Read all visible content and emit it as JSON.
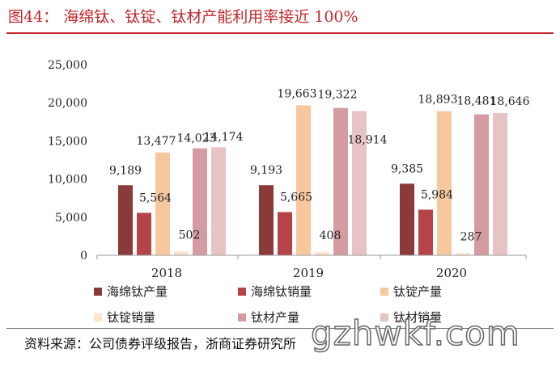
{
  "title": "图44：  海绵钛、钛锭、钛材产能利用率接近 100%",
  "source": "资料来源：公司债券评级报告，浙商证券研究所",
  "watermark": "gzhwkf.com",
  "chart_data": {
    "type": "bar",
    "categories": [
      "2018",
      "2019",
      "2020"
    ],
    "ylim": [
      0,
      25000
    ],
    "yticks": [
      "0",
      "5,000",
      "10,000",
      "15,000",
      "20,000",
      "25,000"
    ],
    "ytick_values": [
      0,
      5000,
      10000,
      15000,
      20000,
      25000
    ],
    "grid": false,
    "legend_position": "bottom",
    "series": [
      {
        "name": "海绵钛产量",
        "color": "#8b3a3a",
        "values": [
          9189,
          9193,
          9385
        ],
        "labels": [
          "9,189",
          "9,193",
          "9,385"
        ]
      },
      {
        "name": "海绵钛销量",
        "color": "#b5444a",
        "values": [
          5564,
          5665,
          5984
        ],
        "labels": [
          "5,564",
          "5,665",
          "5,984"
        ]
      },
      {
        "name": "钛锭产量",
        "color": "#f7c79e",
        "values": [
          13477,
          19663,
          18893
        ],
        "labels": [
          "13,477",
          "19,663",
          "18,893"
        ]
      },
      {
        "name": "钛锭销量",
        "color": "#fbe3cd",
        "values": [
          502,
          408,
          287
        ],
        "labels": [
          "502",
          "408",
          "287"
        ]
      },
      {
        "name": "钛材产量",
        "color": "#d49ca0",
        "values": [
          14023,
          19322,
          18481
        ],
        "labels": [
          "14,023",
          "19,322",
          "18,481"
        ]
      },
      {
        "name": "钛材销量",
        "color": "#e6c4c5",
        "values": [
          14174,
          18914,
          18646
        ],
        "labels": [
          "14,174",
          "18,914",
          "18,646"
        ]
      }
    ]
  }
}
